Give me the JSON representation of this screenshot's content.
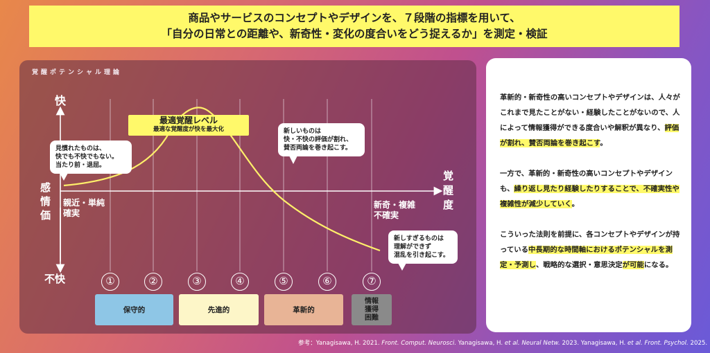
{
  "banner": {
    "line1": "商品やサービスのコンセプトやデザインを、７段階の指標を用いて、",
    "line2": "「自分の日常との距離や、新奇性・変化の度合いをどう捉えるか」を測定・検証"
  },
  "panel": {
    "title": "覚醒ポテンシャル理論"
  },
  "axes": {
    "y_top": "快",
    "y_bottom": "不快",
    "y_label": [
      "感",
      "情",
      "価"
    ],
    "x_label": [
      "覚",
      "醒",
      "度"
    ],
    "x_left_note": [
      "親近・単純",
      "確実"
    ],
    "x_right_note": [
      "新奇・複雑",
      "不確実"
    ]
  },
  "optimal": {
    "title": "最適覚醒レベル",
    "subtitle": "最適な覚醒度が快を最大化"
  },
  "bubbles": {
    "familiar": [
      "見慣れたものは、",
      "快でも不快でもない。",
      "当たり前・退屈。"
    ],
    "new": [
      "新しいものは",
      "快・不快の評価が割れ、",
      "賛否両論を巻き起こす。"
    ],
    "too_new": [
      "新しすぎるものは",
      "理解ができず",
      "混乱を引き起こす。"
    ]
  },
  "steps": [
    "①",
    "②",
    "③",
    "④",
    "⑤",
    "⑥",
    "⑦"
  ],
  "categories": [
    {
      "label": "保守的",
      "color": "#8ec6e6"
    },
    {
      "label": "先進的",
      "color": "#fdf6c8"
    },
    {
      "label": "革新的",
      "color": "#e8b496"
    },
    {
      "label": "情報\n獲得\n困難",
      "color": "#8a8a8a"
    }
  ],
  "side": {
    "p1_a": "革新的・新奇性の高いコンセプトやデザインは、人々がこれまで見たことがない・経験したことがないので、人によって情報獲得ができる度合いや解釈が異なり、",
    "p1_hl": "評価が割れ、賛否両論を巻き起こす",
    "p1_b": "。",
    "p2_a": "一方で、革新的・新奇性の高いコンセプトやデザインも、",
    "p2_hl": "繰り返し見たり経験したりすることで、不確実性や複雑性が減少していく",
    "p2_b": "。",
    "p3_a": "こういった法則を前提に、各コンセプトやデザインが持っている",
    "p3_hl": "中長期的な時間軸におけるポテンシャルを測定・予測し",
    "p3_b": "、戦略的な選択・意思決定",
    "p3_hl2": "が可能",
    "p3_c": "になる。"
  },
  "reference": {
    "prefix": "参考：Yanagisawa, H. 2021. ",
    "j1": "Front. Comput. Neurosci.",
    "mid1": " Yanagisawa, H. ",
    "etal1": "et al. Neural Netw.",
    "mid2": " 2023. Yanagisawa, H. ",
    "etal2": "et al. Front. Psychol.",
    "suffix": " 2025."
  },
  "colors": {
    "curve": "#fff06a",
    "highlight": "#fff96a"
  }
}
